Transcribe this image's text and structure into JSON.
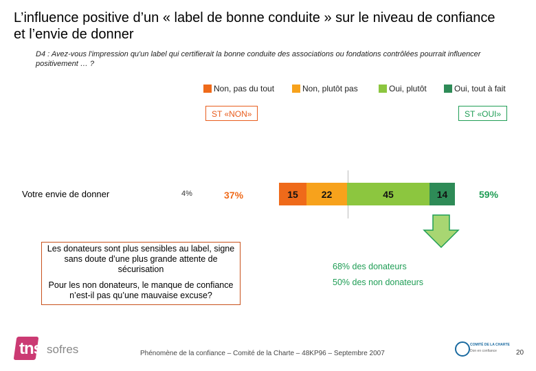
{
  "title": "L’influence positive d’un « label de bonne conduite » sur le niveau de confiance et l’envie de donner",
  "question": "D4 : Avez-vous l'impression qu'un label qui certifierait la bonne conduite des associations ou fondations contrôlées pourrait influencer positivement … ?",
  "legend": [
    {
      "label": "Non, pas du tout",
      "color": "#ef6a1a"
    },
    {
      "label": "Non, plutôt pas",
      "color": "#f7a21c"
    },
    {
      "label": "Oui, plutôt",
      "color": "#8cc63f"
    },
    {
      "label": "Oui, tout à fait",
      "color": "#2e8b57"
    }
  ],
  "st_non_label": "ST «NON»",
  "st_oui_label": "ST «OUI»",
  "row": {
    "label": "Votre envie de donner",
    "nsp_pct": "4%",
    "st_non_value": "37%",
    "st_oui_value": "59%"
  },
  "chart_data": {
    "type": "bar",
    "orientation": "horizontal-stacked",
    "categories": [
      "Votre envie de donner"
    ],
    "series": [
      {
        "name": "Non, pas du tout",
        "values": [
          15
        ]
      },
      {
        "name": "Non, plutôt pas",
        "values": [
          22
        ]
      },
      {
        "name": "Oui, plutôt",
        "values": [
          45
        ]
      },
      {
        "name": "Oui, tout à fait",
        "values": [
          14
        ]
      }
    ],
    "colors": [
      "#ef6a1a",
      "#f7a21c",
      "#8cc63f",
      "#2e8b57"
    ],
    "total_non": 37,
    "total_oui": 59,
    "nsp": 4
  },
  "callout": {
    "line1": "Les donateurs sont plus sensibles au label, signe sans doute d’une plus grande attente de sécurisation",
    "line2": "Pour les non donateurs, le manque de confiance n’est-il pas qu’une mauvaise excuse?"
  },
  "oui_breakdown": {
    "donateurs": "68% des donateurs",
    "non_donateurs": "50% des non donateurs"
  },
  "footer": "Phénomène de la confiance – Comité de la Charte – 48KP96 – Septembre 2007",
  "logo": {
    "tns": "tns",
    "sofres": "sofres"
  },
  "partner_logo": {
    "line1": "COMITÉ DE LA CHARTE",
    "line2": "Don en confiance"
  },
  "page_number": "20"
}
